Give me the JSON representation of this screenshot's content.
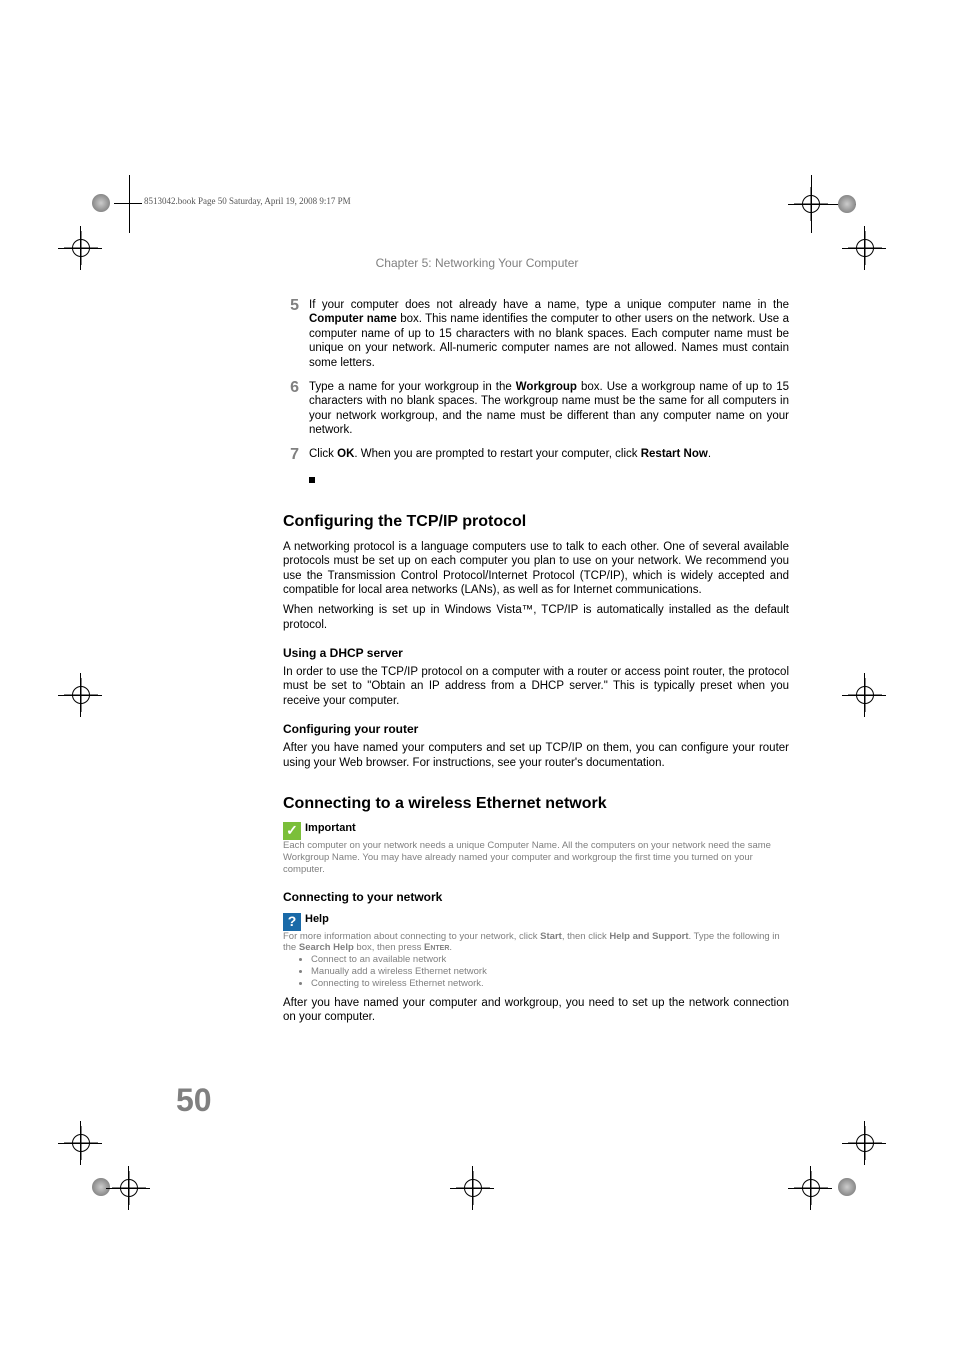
{
  "header_note": "8513042.book  Page 50  Saturday, April 19, 2008  9:17 PM",
  "chapter_title": "Chapter 5: Networking Your Computer",
  "steps": {
    "s5": {
      "num": "5",
      "html": "If your computer does not already have a name, type a unique computer name in the <b>Computer name</b> box. This name identifies the computer to other users on the network. Use a computer name of up to 15 characters with no blank spaces. Each computer name must be unique on your network. All-numeric computer names are not allowed. Names must contain some letters."
    },
    "s6": {
      "num": "6",
      "html": "Type a name for your workgroup in the <b>Workgroup</b> box. Use a workgroup name of up to 15 characters with no blank spaces. The workgroup name must be the same for all computers in your network workgroup, and the name must be different than any computer name on your network."
    },
    "s7": {
      "num": "7",
      "html": "Click <b>OK</b>. When you are prompted to restart your computer, click <b>Restart Now</b>."
    }
  },
  "section1": {
    "title": "Configuring the TCP/IP protocol",
    "p1": "A networking protocol is a language computers use to talk to each other. One of several available protocols must be set up on each computer you plan to use on your network. We recommend you use the Transmission Control Protocol/Internet Protocol (TCP/IP), which is widely accepted and compatible for local area networks (LANs), as well as for Internet communications.",
    "p2": "When networking is set up in Windows Vista™, TCP/IP is automatically installed as the default protocol.",
    "sub1_title": "Using a DHCP server",
    "sub1_p": "In order to use the TCP/IP protocol on a computer with a router or access point router, the protocol must be set to \"Obtain an IP address from a DHCP server.\" This is typically preset when you receive your computer.",
    "sub2_title": "Configuring your router",
    "sub2_p": "After you have named your computers and set up TCP/IP on them, you can configure your router using your Web browser. For instructions, see your router's documentation."
  },
  "section2": {
    "title": "Connecting to a wireless Ethernet network",
    "important": {
      "label": "Important",
      "body": "Each computer on your network needs a unique Computer Name. All the computers on your network need the same Workgroup Name. You may have already named your computer and workgroup the first time you turned on your computer."
    },
    "sub1_title": "Connecting to your network",
    "help": {
      "label": "Help",
      "body_html": "For more information about connecting to your network, click <b>Start</b>, then click <b>Help and Support</b>. Type the following in the <b>Search Help</b> box, then press <span class='smallcaps'>Enter</span>.",
      "items": [
        "Connect to an available network",
        "Manually add a wireless Ethernet network",
        "Connecting to wireless Ethernet network."
      ]
    },
    "after": "After you have named your computer and workgroup, you need to set up the network connection on your computer."
  },
  "page_number": "50"
}
